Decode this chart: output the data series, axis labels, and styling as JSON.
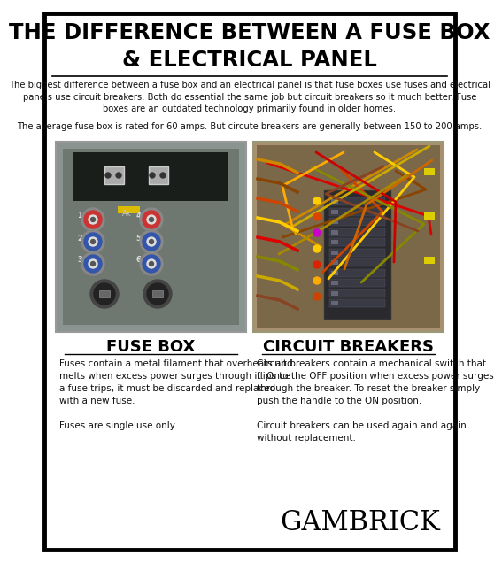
{
  "title_line1": "THE DIFFERENCE BETWEEN A FUSE BOX",
  "title_line2": "& ELECTRICAL PANEL",
  "bg_color": "#ffffff",
  "border_color": "#000000",
  "title_color": "#000000",
  "body_text1": "The biggest difference between a fuse box and an electrical panel is that fuse boxes use fuses and electrical\npanels use circuit breakers. Both do essential the same job but circuit breakers so it much better. Fuse\nboxes are an outdated technology primarily found in older homes.",
  "body_text2": "The average fuse box is rated for 60 amps. But circute breakers are generally between 150 to 200 amps.",
  "left_label": "FUSE BOX",
  "right_label": "CIRCUIT BREAKERS",
  "left_desc": "Fuses contain a metal filament that overheats and\nmelts when excess power surges through it. Once\na fuse trips, it must be discarded and replaced\nwith a new fuse.\n\nFuses are single use only.",
  "right_desc": "Circuit breakers contain a mechanical switch that\nflips to the OFF position when excess power surges\nthrough the breaker. To reset the breaker simply\npush the handle to the ON position.\n\nCircuit breakers can be used again and again\nwithout replacement.",
  "brand": "GAMBRICK",
  "fuse_img_bg": "#8a9490",
  "fuse_img_inner": "#6e7870",
  "fuse_panel_dark": "#2a2e2a",
  "circuit_img_bg": "#a89070",
  "circuit_img_inner": "#706050",
  "label_fontsize": 13,
  "desc_fontsize": 7.5,
  "brand_fontsize": 22
}
